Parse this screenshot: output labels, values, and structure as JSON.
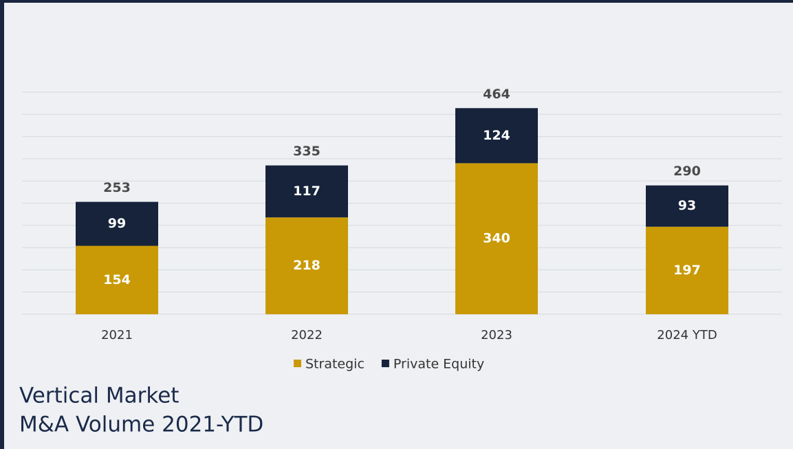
{
  "chart_data": {
    "type": "stacked_bar",
    "title": [
      "Vertical Market",
      "M&A Volume 2021-YTD"
    ],
    "categories": [
      "2021",
      "2022",
      "2023",
      "2024 YTD"
    ],
    "series": [
      {
        "name": "Strategic",
        "color": "#c99a06",
        "values": [
          154,
          218,
          340,
          197
        ]
      },
      {
        "name": "Private Equity",
        "color": "#16233b",
        "values": [
          99,
          117,
          124,
          93
        ]
      }
    ],
    "totals": [
      253,
      335,
      464,
      290
    ],
    "ylim": [
      0,
      500
    ],
    "yticks": [
      0,
      50,
      100,
      150,
      200,
      250,
      300,
      350,
      400,
      450,
      500
    ],
    "grid": true,
    "legend": "bottom"
  }
}
